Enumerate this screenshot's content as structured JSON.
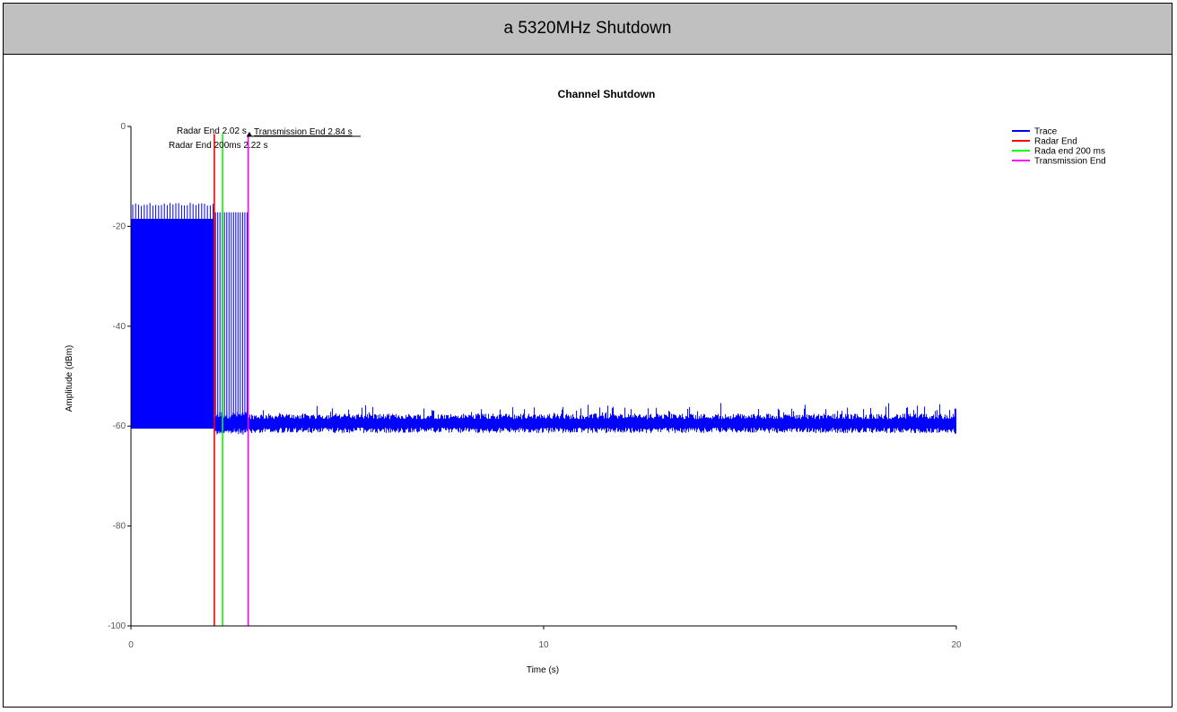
{
  "header": {
    "title": "a 5320MHz Shutdown"
  },
  "chart_data": {
    "type": "line",
    "title": "Channel Shutdown",
    "xlabel": "Time (s)",
    "ylabel": "Amplitude (dBm)",
    "xlim": [
      0,
      20
    ],
    "ylim": [
      -100,
      0
    ],
    "x_ticks": [
      0,
      10,
      20
    ],
    "y_ticks": [
      0,
      -20,
      -40,
      -60,
      -80,
      -100
    ],
    "grid": false,
    "legend_position": "top-right",
    "series": [
      {
        "name": "Trace",
        "color": "#0000ff",
        "segments": [
          {
            "x_start": 0,
            "x_end": 2.02,
            "pattern": "dense_bursts",
            "y_min": -60.5,
            "y_max": -15.2,
            "y_body_top": -18.5
          },
          {
            "x_start": 2.02,
            "x_end": 2.84,
            "pattern": "sparse_bursts",
            "y_min": -61,
            "y_max": -17.2,
            "burst_count": 15
          },
          {
            "x_start": 2.84,
            "x_end": 20,
            "pattern": "noise",
            "y_min": -61.5,
            "y_max": -56.5,
            "y_mean": -59.5
          }
        ]
      },
      {
        "name": "Radar End",
        "color": "#ff0000",
        "x": 2.02
      },
      {
        "name": "Rada end 200 ms",
        "color": "#00ff00",
        "x": 2.22
      },
      {
        "name": "Transmission End",
        "color": "#ff00ff",
        "x": 2.84
      }
    ],
    "annotations": [
      {
        "text": "Radar End 2.02 s"
      },
      {
        "text": "Radar End 200ms 2.22 s"
      },
      {
        "text": "Transmission End 2.84 s"
      }
    ]
  }
}
